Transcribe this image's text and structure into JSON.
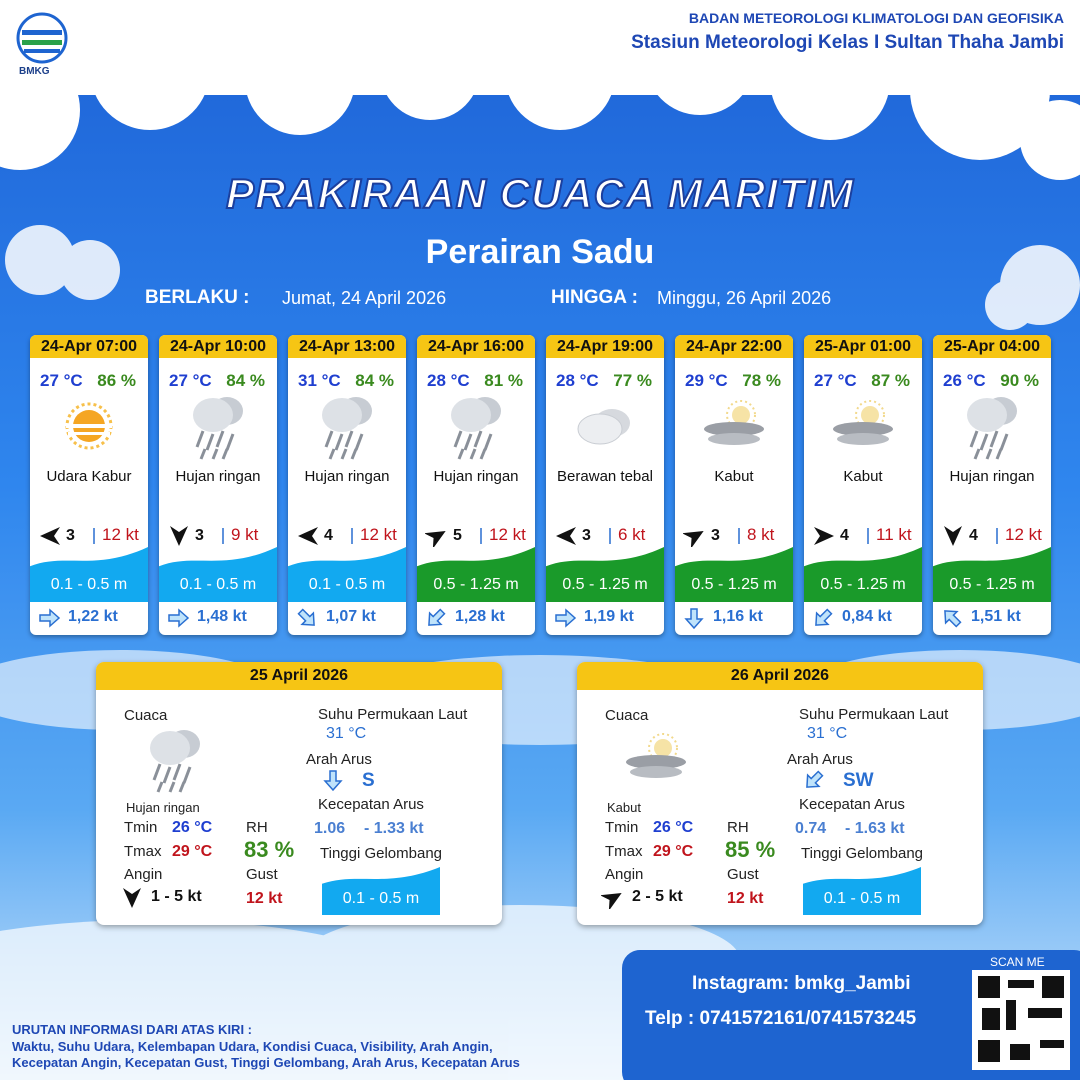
{
  "header": {
    "logo": "BMKG",
    "org": "BADAN METEOROLOGI KLIMATOLOGI DAN GEOFISIKA",
    "station": "Stasiun Meteorologi Kelas I Sultan Thaha Jambi"
  },
  "title": "PRAKIRAAN CUACA MARITIM",
  "subtitle": "Perairan Sadu",
  "validity": {
    "from_label": "BERLAKU :",
    "from": "Jumat, 24 April 2026",
    "to_label": "HINGGA :",
    "to": "Minggu, 26 April 2026"
  },
  "cards": [
    {
      "time": "24-Apr 07:00",
      "temp": "27 °C",
      "rh": "86 %",
      "weather": "Udara Kabur",
      "wind": "3",
      "gust": "12 kt",
      "wave": "0.1 - 0.5 m",
      "wave_color": "#12a9f0",
      "current": "1,22 kt"
    },
    {
      "time": "24-Apr 10:00",
      "temp": "27 °C",
      "rh": "84 %",
      "weather": "Hujan ringan",
      "wind": "3",
      "gust": "9 kt",
      "wave": "0.1 - 0.5 m",
      "wave_color": "#12a9f0",
      "current": "1,48 kt"
    },
    {
      "time": "24-Apr 13:00",
      "temp": "31 °C",
      "rh": "84 %",
      "weather": "Hujan ringan",
      "wind": "4",
      "gust": "12 kt",
      "wave": "0.1 - 0.5 m",
      "wave_color": "#12a9f0",
      "current": "1,07 kt"
    },
    {
      "time": "24-Apr 16:00",
      "temp": "28 °C",
      "rh": "81 %",
      "weather": "Hujan ringan",
      "wind": "5",
      "gust": "12 kt",
      "wave": "0.5 - 1.25 m",
      "wave_color": "#1a9a2a",
      "current": "1,28 kt"
    },
    {
      "time": "24-Apr 19:00",
      "temp": "28 °C",
      "rh": "77 %",
      "weather": "Berawan tebal",
      "wind": "3",
      "gust": "6 kt",
      "wave": "0.5 - 1.25 m",
      "wave_color": "#1a9a2a",
      "current": "1,19 kt"
    },
    {
      "time": "24-Apr 22:00",
      "temp": "29 °C",
      "rh": "78 %",
      "weather": "Kabut",
      "wind": "3",
      "gust": "8 kt",
      "wave": "0.5 - 1.25 m",
      "wave_color": "#1a9a2a",
      "current": "1,16 kt"
    },
    {
      "time": "25-Apr 01:00",
      "temp": "27 °C",
      "rh": "87 %",
      "weather": "Kabut",
      "wind": "4",
      "gust": "11 kt",
      "wave": "0.5 - 1.25 m",
      "wave_color": "#1a9a2a",
      "current": "0,84 kt"
    },
    {
      "time": "25-Apr 04:00",
      "temp": "26 °C",
      "rh": "90 %",
      "weather": "Hujan ringan",
      "wind": "4",
      "gust": "12 kt",
      "wave": "0.5 - 1.25 m",
      "wave_color": "#1a9a2a",
      "current": "1,51 kt"
    }
  ],
  "daily": [
    {
      "date": "25 April 2026",
      "weather_label": "Cuaca",
      "weather": "Hujan ringan",
      "sst_label": "Suhu Permukaan Laut",
      "sst": "31 °C",
      "current_dir_label": "Arah Arus",
      "current_dir": "S",
      "current_speed_label": "Kecepatan Arus",
      "current_min": "1.06",
      "current_max": "- 1.33 kt",
      "tmin_label": "Tmin",
      "tmin": "26 °C",
      "tmax_label": "Tmax",
      "tmax": "29 °C",
      "rh_label": "RH",
      "rh": "83 %",
      "wind_label": "Angin",
      "wind": "1 - 5 kt",
      "gust_label": "Gust",
      "gust": "12 kt",
      "wave_label": "Tinggi Gelombang",
      "wave": "0.1 - 0.5 m"
    },
    {
      "date": "26 April 2026",
      "weather_label": "Cuaca",
      "weather": "Kabut",
      "sst_label": "Suhu Permukaan Laut",
      "sst": "31 °C",
      "current_dir_label": "Arah Arus",
      "current_dir": "SW",
      "current_speed_label": "Kecepatan Arus",
      "current_min": "0.74",
      "current_max": "- 1.63 kt",
      "tmin_label": "Tmin",
      "tmin": "26 °C",
      "tmax_label": "Tmax",
      "tmax": "29 °C",
      "rh_label": "RH",
      "rh": "85 %",
      "wind_label": "Angin",
      "wind": "2 - 5 kt",
      "gust_label": "Gust",
      "gust": "12 kt",
      "wave_label": "Tinggi Gelombang",
      "wave": "0.1 - 0.5 m"
    }
  ],
  "footer": {
    "instagram": "Instagram: bmkg_Jambi",
    "phone": "Telp : 0741572161/0741573245",
    "scan": "SCAN ME",
    "info_title": "URUTAN INFORMASI DARI ATAS KIRI :",
    "info": [
      "Waktu, Suhu Udara, Kelembapan Udara, Kondisi Cuaca, Visibility, Arah Angin,",
      "Kecepatan Angin, Kecepatan Gust, Tinggi Gelombang, Arah Arus, Kecepatan Arus"
    ]
  }
}
